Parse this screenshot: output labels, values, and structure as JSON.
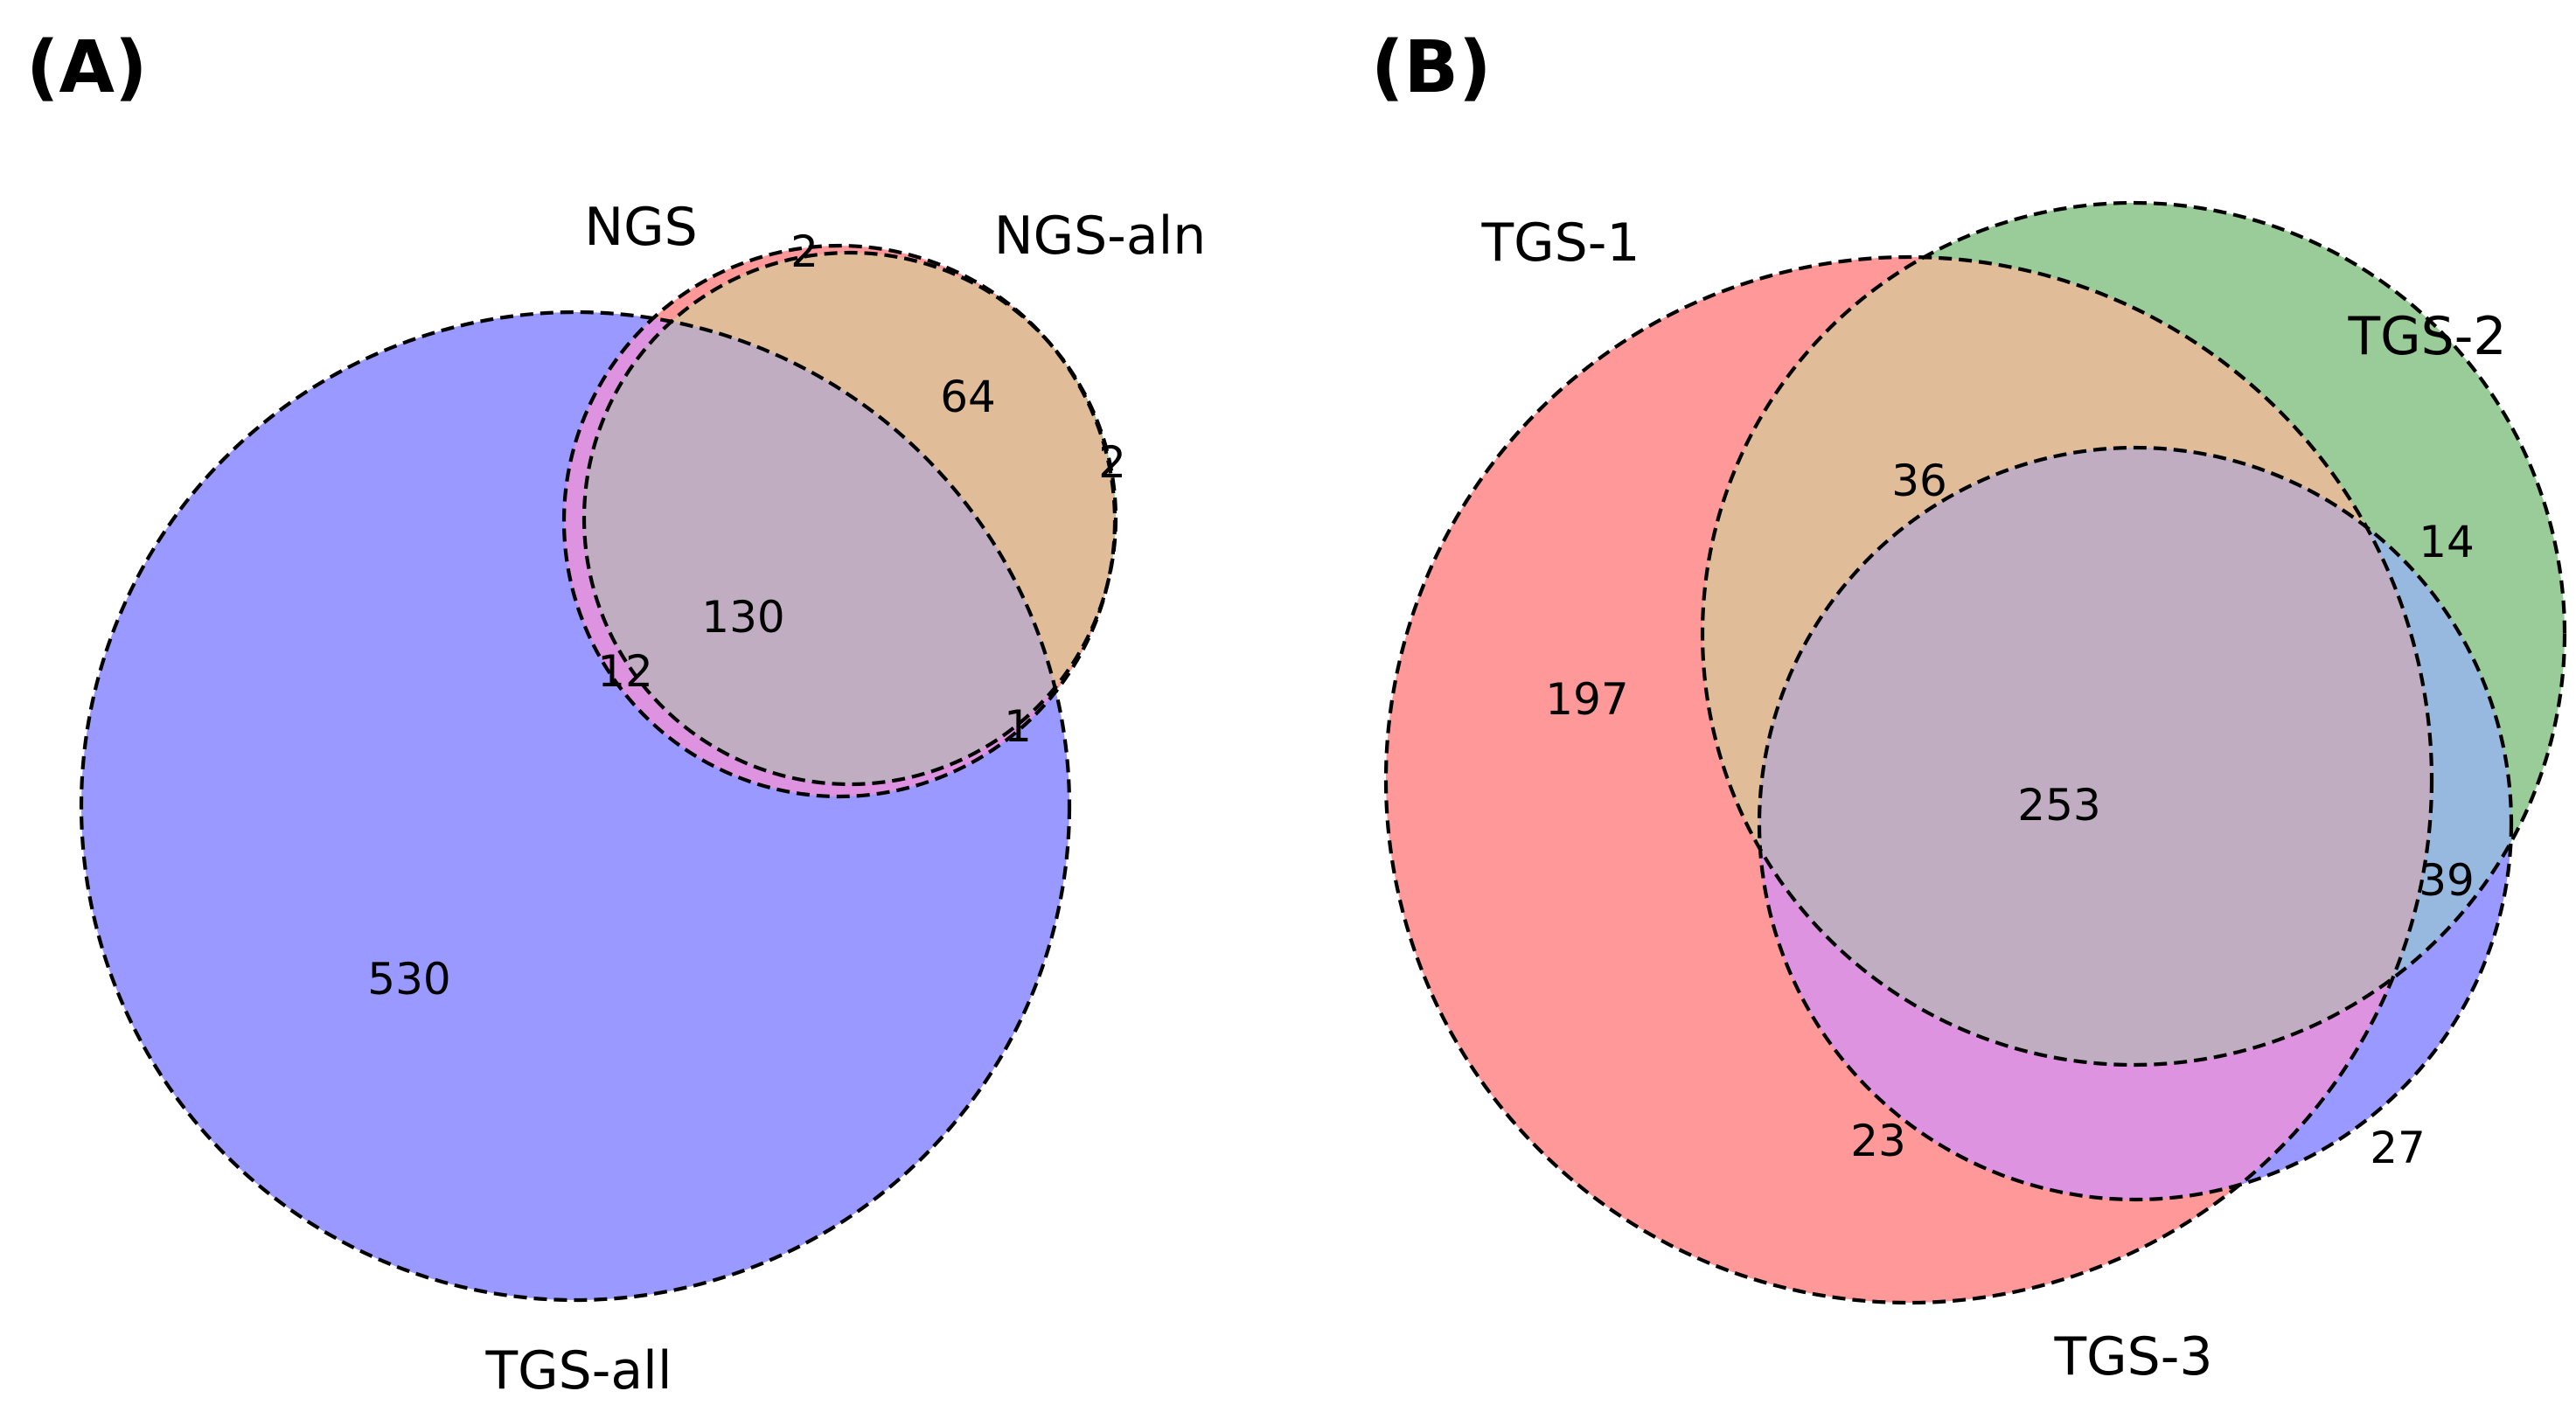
{
  "panels": [
    {
      "label": "(A)",
      "sets": [
        "NGS",
        "NGS-aln",
        "TGS-all"
      ],
      "regions": {
        "ngs_only": "2",
        "ngs_and_ngs_aln_only": "64",
        "ngs_aln_only": "2",
        "all_three": "130",
        "ngs_and_tgs_all_only": "12",
        "ngs_aln_and_tgs_all_only": "1",
        "tgs_all_only": "530"
      }
    },
    {
      "label": "(B)",
      "sets": [
        "TGS-1",
        "TGS-2",
        "TGS-3"
      ],
      "regions": {
        "tgs1_only": "197",
        "tgs1_and_tgs2_only": "36",
        "tgs2_only": "14",
        "all_three": "253",
        "tgs2_and_tgs3_only": "39",
        "tgs1_and_tgs3_only": "23",
        "tgs3_only": "27"
      }
    }
  ],
  "colors": {
    "set1": "#ff9999",
    "set2": "#99cc99",
    "set3": "#9999ff",
    "set1_set2": "#e0bd98",
    "set1_set3": "#de93e0",
    "set2_set3": "#97b9e0",
    "all": "#c0adc2",
    "outline": "#000000"
  }
}
